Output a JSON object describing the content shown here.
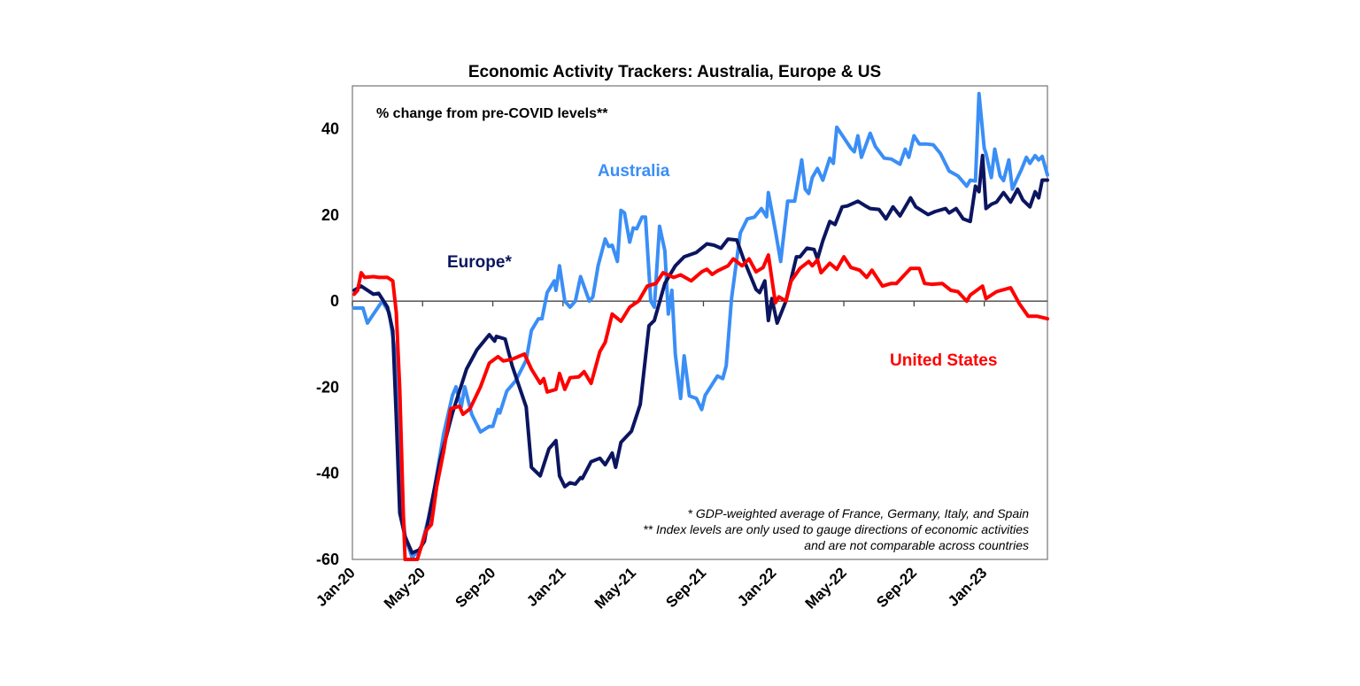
{
  "chart_data": {
    "type": "line",
    "title": "Economic Activity Trackers: Australia, Europe & US",
    "subtitle": "% change from pre-COVID levels**",
    "xlabel": "",
    "ylabel": "",
    "x_units": "months since Jan-20",
    "xlim": [
      0,
      39.6
    ],
    "ylim": [
      -60,
      50
    ],
    "grid": false,
    "x_ticks": [
      {
        "x": 0,
        "label": "Jan-20"
      },
      {
        "x": 4,
        "label": "May-20"
      },
      {
        "x": 8,
        "label": "Sep-20"
      },
      {
        "x": 12,
        "label": "Jan-21"
      },
      {
        "x": 16,
        "label": "May-21"
      },
      {
        "x": 20,
        "label": "Sep-21"
      },
      {
        "x": 24,
        "label": "Jan-22"
      },
      {
        "x": 28,
        "label": "May-22"
      },
      {
        "x": 32,
        "label": "Sep-22"
      },
      {
        "x": 36,
        "label": "Jan-23"
      }
    ],
    "y_ticks": [
      {
        "y": 40,
        "label": "40"
      },
      {
        "y": 20,
        "label": "20"
      },
      {
        "y": 0,
        "label": "0"
      },
      {
        "y": -20,
        "label": "-20"
      },
      {
        "y": -40,
        "label": "-40"
      },
      {
        "y": -60,
        "label": "-60"
      }
    ],
    "footnotes": [
      "* GDP-weighted average of France, Germany, Italy, and Spain",
      "** Index levels are only used to gauge directions of economic activities",
      "and are not comparable across countries"
    ],
    "series": [
      {
        "name": "Australia",
        "color": "#3a8ef6",
        "x": [
          0.1,
          0.6,
          0.86,
          1.2,
          1.7,
          2.1,
          2.5,
          2.7,
          3.0,
          3.4,
          3.9,
          4.5,
          5.2,
          5.7,
          5.9,
          6.2,
          6.4,
          6.8,
          7.3,
          7.8,
          8.0,
          8.3,
          8.4,
          8.8,
          9.3,
          9.9,
          10.2,
          10.6,
          10.8,
          11.1,
          11.5,
          11.6,
          11.8,
          12.1,
          12.4,
          12.7,
          13.0,
          13.5,
          13.7,
          14.0,
          14.4,
          14.6,
          14.8,
          15.1,
          15.3,
          15.5,
          15.8,
          16.0,
          16.2,
          16.5,
          16.7,
          17.0,
          17.2,
          17.5,
          17.8,
          18.0,
          18.2,
          18.4,
          18.7,
          18.9,
          19.2,
          19.6,
          19.9,
          20.1,
          20.8,
          21.1,
          21.3,
          21.6,
          22.1,
          22.5,
          22.9,
          23.3,
          23.6,
          23.7,
          24.1,
          24.4,
          24.8,
          25.2,
          25.6,
          25.8,
          26.0,
          26.2,
          26.5,
          26.8,
          27.2,
          27.4,
          27.6,
          28.4,
          28.6,
          28.8,
          29.0,
          29.5,
          29.8,
          30.3,
          30.7,
          31.2,
          31.5,
          31.7,
          32.0,
          32.3,
          32.7,
          33.1,
          33.5,
          34.0,
          34.5,
          35.0,
          35.2,
          35.5,
          35.7,
          36.0,
          36.1,
          36.4,
          36.6,
          36.9,
          37.1,
          37.4,
          37.6,
          37.9,
          38.1,
          38.4,
          38.6,
          38.9,
          39.1,
          39.3,
          39.6
        ],
        "y": [
          -1.6,
          -1.6,
          -5.1,
          -3,
          0,
          -2.7,
          -13.7,
          -41,
          -54.7,
          -59.5,
          -57.4,
          -47.8,
          -30.8,
          -21.9,
          -19.9,
          -24.6,
          -19.9,
          -26.3,
          -30.4,
          -29.1,
          -29.1,
          -25.2,
          -26,
          -20.9,
          -18.5,
          -13.7,
          -6.8,
          -4.1,
          -4.1,
          2,
          4.7,
          2.5,
          8.2,
          0,
          -1.4,
          0,
          5.7,
          0,
          1,
          8.2,
          14.4,
          12.7,
          13,
          9.2,
          21.1,
          20.5,
          13.7,
          17,
          16.8,
          19.5,
          19.5,
          0,
          -1.4,
          17.4,
          11.7,
          -3,
          2.5,
          -12.3,
          -22.6,
          -12.7,
          -22,
          -22.6,
          -25.2,
          -21.9,
          -17.4,
          -18,
          -15,
          0.6,
          15.8,
          19.1,
          19.5,
          21.5,
          19.6,
          25.2,
          16.4,
          9.2,
          23.2,
          23.2,
          32.8,
          26,
          25,
          28.7,
          30.8,
          28.1,
          33.2,
          32,
          40.4,
          35.5,
          34.7,
          38.4,
          33.4,
          39,
          35.9,
          33.2,
          33,
          31.8,
          35.3,
          33.4,
          38.4,
          36.5,
          36.5,
          36.3,
          34.3,
          30.2,
          29.1,
          26.7,
          28.1,
          27.9,
          48.2,
          35.5,
          34.3,
          28.7,
          35.3,
          29.1,
          28,
          32.8,
          26,
          28.7,
          30.4,
          33.4,
          32,
          33.8,
          32.8,
          33.6,
          29.3
        ]
      },
      {
        "name": "Europe*",
        "color": "#0b1560",
        "x": [
          0.1,
          0.5,
          1.2,
          1.5,
          2.0,
          2.3,
          2.5,
          2.7,
          3.0,
          3.4,
          3.8,
          4.1,
          4.4,
          5.0,
          5.7,
          6.5,
          7.1,
          7.8,
          8.1,
          8.2,
          8.7,
          9.1,
          9.9,
          10.2,
          10.7,
          11.2,
          11.6,
          11.8,
          12.1,
          12.4,
          12.7,
          13.0,
          13.1,
          13.6,
          14.1,
          14.4,
          14.8,
          15.0,
          15.3,
          15.9,
          16.4,
          16.9,
          17.2,
          17.8,
          18.4,
          18.9,
          19.6,
          20.2,
          20.6,
          21.0,
          21.4,
          21.9,
          22.3,
          23.0,
          23.2,
          23.5,
          23.7,
          23.9,
          24.2,
          24.7,
          25.3,
          25.5,
          25.9,
          26.3,
          26.5,
          26.8,
          27.2,
          27.5,
          27.9,
          28.2,
          28.8,
          29.2,
          29.5,
          30.0,
          30.4,
          30.8,
          31.2,
          31.8,
          32.1,
          32.8,
          33.2,
          33.8,
          34.0,
          34.4,
          34.8,
          35.2,
          35.5,
          35.7,
          35.9,
          36.1,
          36.4,
          36.7,
          37.1,
          37.5,
          37.9,
          38.2,
          38.6,
          38.9,
          39.1,
          39.3,
          39.6
        ],
        "y": [
          2.5,
          3.5,
          1.6,
          1.8,
          -1.4,
          -6.8,
          -27.3,
          -49.2,
          -54.7,
          -58.5,
          -57.8,
          -55.8,
          -49.2,
          -36.9,
          -26,
          -15.8,
          -11.3,
          -7.8,
          -9.3,
          -8.2,
          -8.8,
          -15,
          -24.6,
          -38.6,
          -40.6,
          -34.3,
          -32.4,
          -40.6,
          -43.1,
          -42.2,
          -42.5,
          -41,
          -41.2,
          -37.3,
          -36.5,
          -38,
          -35.3,
          -38.6,
          -32.8,
          -30.2,
          -24,
          -5.7,
          -4.5,
          4.1,
          8.2,
          10.3,
          11.3,
          13.3,
          13,
          12.3,
          14.4,
          14.2,
          9.6,
          2.7,
          2,
          4.7,
          -4.5,
          0.6,
          -5.1,
          0,
          10.3,
          10.3,
          12.3,
          12,
          9.8,
          14,
          18.5,
          17.8,
          21.9,
          22.1,
          23.2,
          22.2,
          21.5,
          21.3,
          19.1,
          21.9,
          19.8,
          24,
          21.9,
          20.1,
          20.8,
          21.5,
          20.5,
          21.5,
          19.1,
          18.5,
          26.7,
          25.4,
          33.8,
          21.5,
          22.5,
          23,
          25.2,
          23,
          26,
          23.5,
          21.9,
          25.4,
          24,
          28.1,
          28.1
        ]
      },
      {
        "name": "United States",
        "color": "#ff0000",
        "x": [
          0.1,
          0.3,
          0.5,
          0.7,
          1.2,
          1.5,
          2.0,
          2.3,
          2.5,
          2.7,
          2.9,
          3.0,
          3.7,
          4.2,
          4.5,
          4.8,
          5.2,
          5.6,
          6.1,
          6.3,
          6.7,
          7.3,
          7.8,
          8.3,
          8.6,
          9.1,
          9.8,
          10.2,
          10.7,
          10.9,
          11.1,
          11.6,
          11.8,
          12.1,
          12.4,
          12.9,
          13.2,
          13.6,
          14.1,
          14.4,
          14.8,
          15.3,
          15.8,
          16.3,
          16.8,
          17.3,
          17.7,
          18.3,
          18.7,
          19.3,
          19.9,
          20.2,
          20.5,
          20.8,
          21.4,
          21.7,
          22.2,
          22.6,
          23.0,
          23.4,
          23.7,
          24.1,
          24.3,
          24.7,
          25.0,
          25.5,
          26.0,
          26.2,
          26.5,
          26.7,
          27.2,
          27.6,
          28.0,
          28.4,
          28.9,
          29.3,
          29.6,
          30.2,
          30.7,
          31.0,
          31.8,
          32.3,
          32.6,
          33.0,
          33.6,
          34.1,
          34.5,
          35.0,
          35.2,
          35.9,
          36.1,
          36.7,
          37.5,
          38.0,
          38.5,
          39.0,
          39.6
        ],
        "y": [
          1.6,
          2.5,
          6.6,
          5.5,
          5.7,
          5.5,
          5.5,
          4.7,
          -2.7,
          -20.5,
          -49.2,
          -60,
          -60,
          -53.3,
          -51.9,
          -43.1,
          -34.9,
          -25,
          -24.4,
          -26.3,
          -25,
          -19.9,
          -14.4,
          -12.9,
          -13.9,
          -13.5,
          -12.3,
          -15.8,
          -19.1,
          -18,
          -21.1,
          -20.5,
          -16.8,
          -20.5,
          -17.8,
          -17.6,
          -16.4,
          -19.1,
          -11.7,
          -9.6,
          -3,
          -4.7,
          -1.4,
          0,
          3.5,
          4.1,
          6.6,
          5.5,
          6.1,
          4.7,
          6.8,
          7.4,
          6.2,
          7,
          8.2,
          9.8,
          8.2,
          9.8,
          6.8,
          7.8,
          10.7,
          -0.4,
          1,
          0,
          4.7,
          7.6,
          9.2,
          8.2,
          9.6,
          6.6,
          8.8,
          7.4,
          10.3,
          7.8,
          7.2,
          5.5,
          7.2,
          3.5,
          4.1,
          4.1,
          7.6,
          7.6,
          4.1,
          3.9,
          4.1,
          2.5,
          2.2,
          0,
          1.4,
          3.5,
          0.6,
          2.2,
          3.1,
          -0.6,
          -3.5,
          -3.5,
          -4.1
        ]
      }
    ]
  }
}
